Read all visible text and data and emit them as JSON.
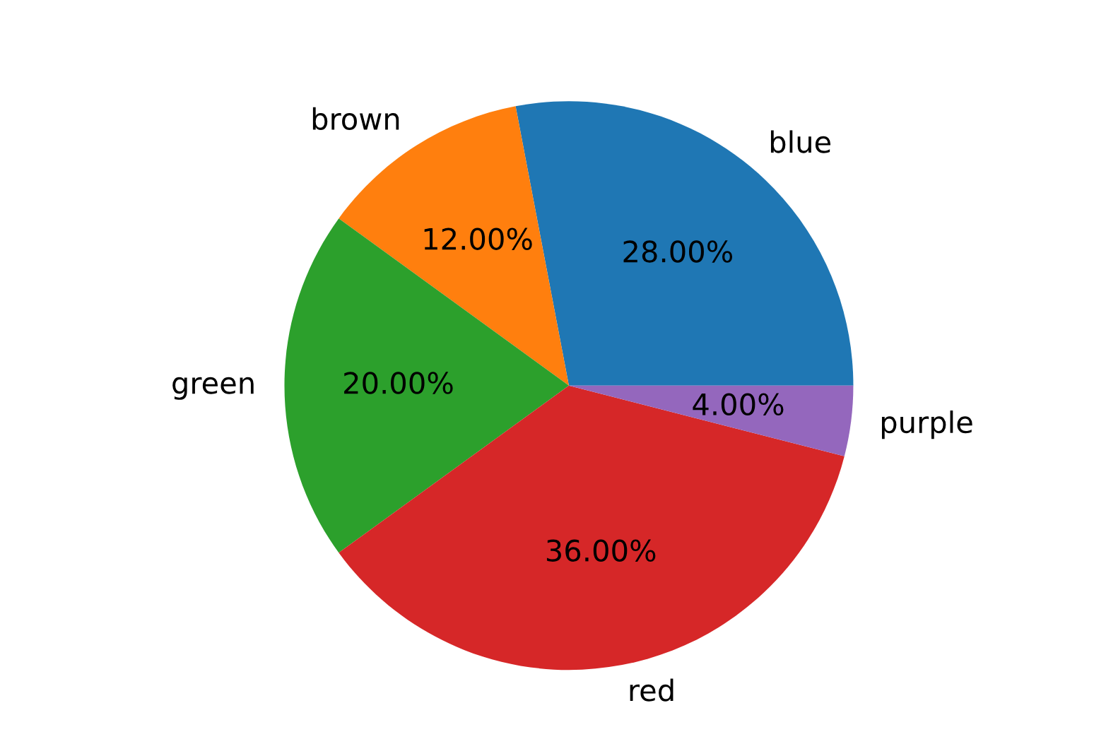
{
  "chart_data": {
    "type": "pie",
    "categories": [
      "blue",
      "brown",
      "green",
      "red",
      "purple"
    ],
    "values": [
      28,
      12,
      20,
      36,
      4
    ],
    "colors": [
      "#1f77b4",
      "#ff7f0e",
      "#2ca02c",
      "#d62728",
      "#9467bd"
    ],
    "value_labels": [
      "28.00%",
      "12.00%",
      "20.00%",
      "36.00%",
      "4.00%"
    ],
    "legend": false
  }
}
